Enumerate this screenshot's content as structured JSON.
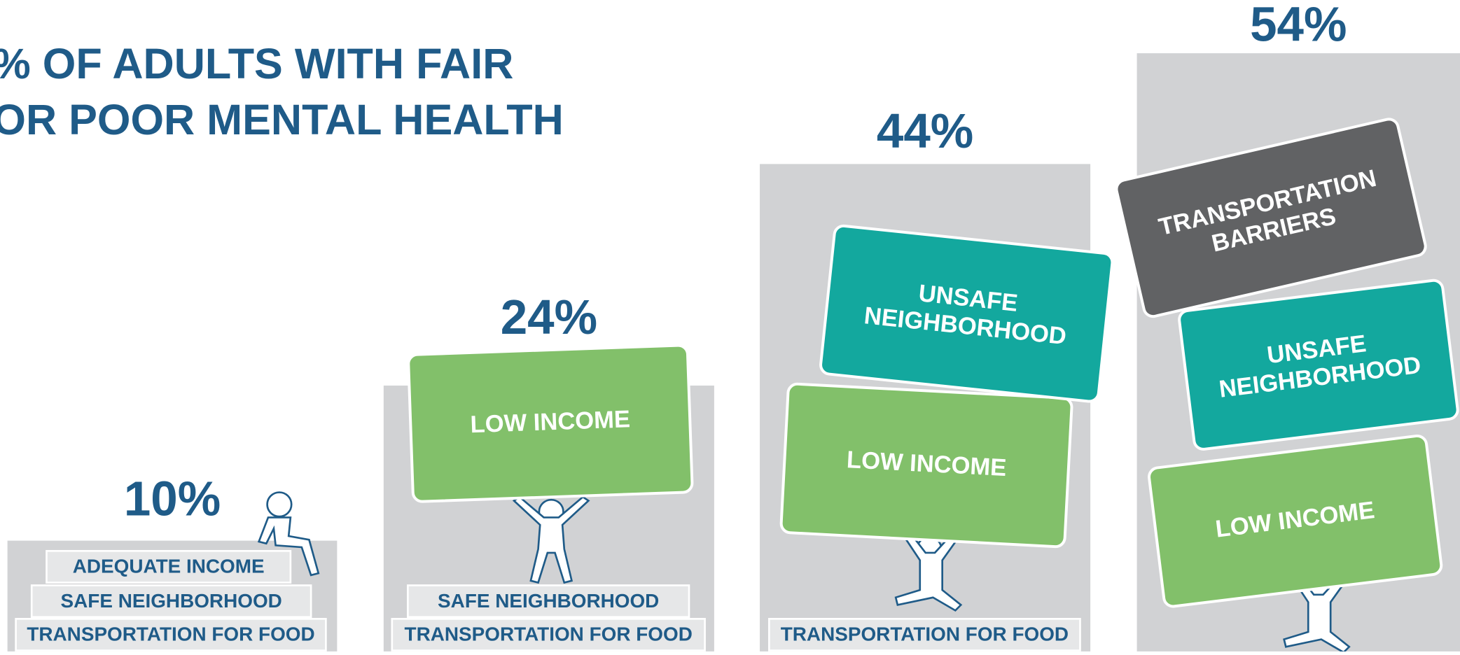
{
  "chart_data": {
    "type": "bar",
    "title_lines": [
      "% OF ADULTS WITH FAIR",
      "OR POOR MENTAL HEALTH"
    ],
    "categories": [
      null,
      null,
      null,
      null
    ],
    "values": [
      10,
      24,
      44,
      54
    ],
    "value_labels": [
      "10%",
      "24%",
      "44%",
      "54%"
    ],
    "color": "#d1d2d4",
    "ylim": [
      0,
      58.8
    ],
    "steps": [
      [
        "ADEQUATE INCOME",
        "SAFE NEIGHBORHOOD",
        "TRANSPORTATION FOR FOOD"
      ],
      [
        "SAFE NEIGHBORHOOD",
        "TRANSPORTATION FOR FOOD"
      ],
      [
        "TRANSPORTATION FOR FOOD"
      ],
      []
    ],
    "burdens": [
      [],
      [
        {
          "lines": [
            "LOW INCOME"
          ],
          "color": "#82c06a"
        }
      ],
      [
        {
          "lines": [
            "LOW INCOME"
          ],
          "color": "#82c06a"
        },
        {
          "lines": [
            "UNSAFE",
            "NEIGHBORHOOD"
          ],
          "color": "#13a89e"
        }
      ],
      [
        {
          "lines": [
            "LOW INCOME"
          ],
          "color": "#82c06a"
        },
        {
          "lines": [
            "UNSAFE",
            "NEIGHBORHOOD"
          ],
          "color": "#13a89e"
        },
        {
          "lines": [
            "TRANSPORTATION",
            "BARRIERS"
          ],
          "color": "#616264"
        }
      ]
    ]
  }
}
